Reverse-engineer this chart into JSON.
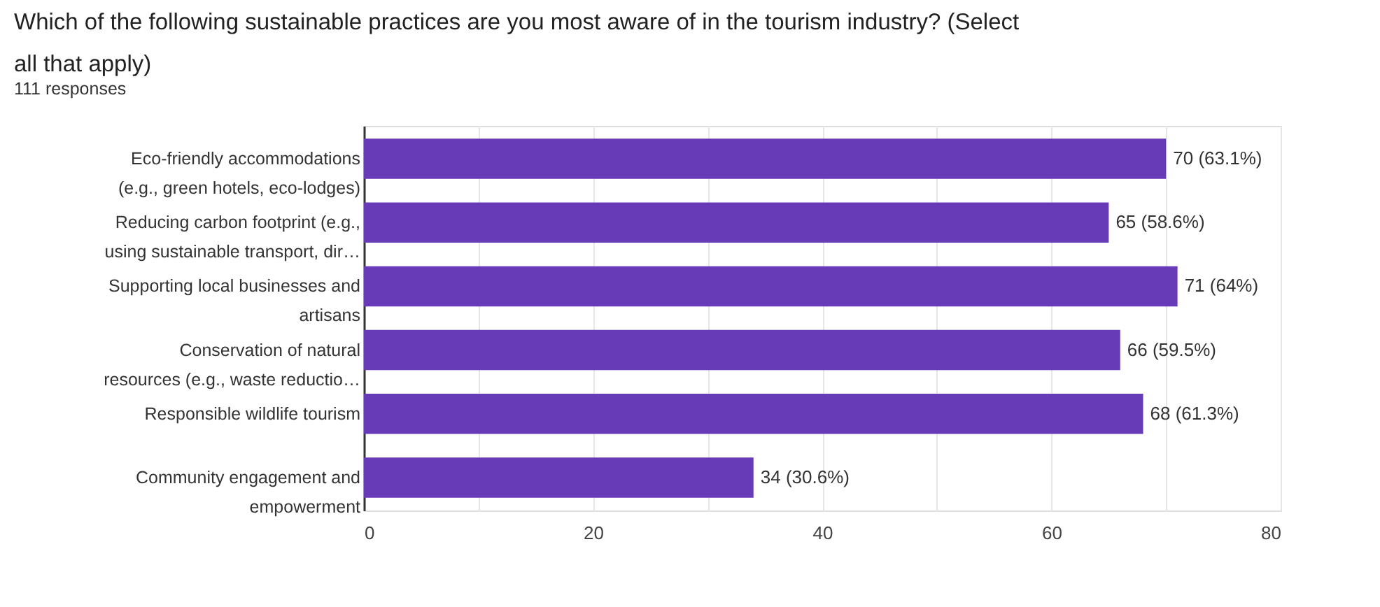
{
  "chart_data": {
    "type": "bar",
    "orientation": "horizontal",
    "title": "Which of the following sustainable practices are you most aware of in the tourism industry? (Select all that apply)",
    "subtitle": "111 responses",
    "categories": [
      "Eco-friendly accommodations\n(e.g., green hotels, eco-lodges)",
      "Reducing carbon footprint (e.g.,\nusing sustainable transport, dir…",
      "Supporting local businesses and\nartisans",
      "Conservation of natural\nresources (e.g., waste reductio…",
      "Responsible wildlife tourism",
      "Community engagement and\nempowerment"
    ],
    "values": [
      70,
      65,
      71,
      66,
      68,
      34
    ],
    "value_labels": [
      "70 (63.1%)",
      "65 (58.6%)",
      "71 (64%)",
      "66 (59.5%)",
      "68 (61.3%)",
      "34 (30.6%)"
    ],
    "color": "#673ab7",
    "xlim": [
      0,
      80
    ],
    "xticks": [
      0,
      {
        "value": 10,
        "label": null
      },
      20,
      {
        "value": 30,
        "label": null
      },
      40,
      {
        "value": 50,
        "label": null
      },
      60,
      {
        "value": 70,
        "label": null
      },
      80
    ],
    "grid": "x"
  }
}
